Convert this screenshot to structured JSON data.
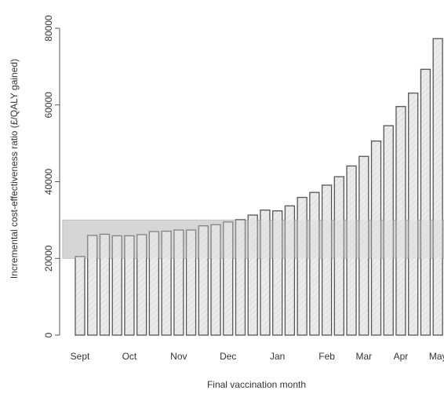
{
  "chart_data": {
    "type": "bar",
    "title": "",
    "xlabel": "Final vaccination month",
    "ylabel": "Incremental cost-effectiveness ratio (£/QALY gained)",
    "ylim": [
      0,
      80000
    ],
    "yticks": [
      "0",
      "20000",
      "40000",
      "60000",
      "80000"
    ],
    "month_labels": [
      "Sept",
      "Oct",
      "Nov",
      "Dec",
      "Jan",
      "Feb",
      "Mar",
      "Apr",
      "May"
    ],
    "threshold_band": [
      20000,
      30000
    ],
    "grid": false,
    "values": [
      20500,
      26000,
      26300,
      25900,
      25900,
      26200,
      27000,
      27100,
      27400,
      27400,
      28500,
      28800,
      29500,
      30100,
      31300,
      32600,
      32400,
      33700,
      35900,
      37200,
      39100,
      41300,
      44100,
      46600,
      50600,
      54600,
      59600,
      63100,
      69300,
      77300
    ],
    "colors": {
      "bar_fill": "#ebebeb",
      "bar_stroke": "#555555",
      "band_fill": "#d6d6d6",
      "axis": "#555555",
      "text": "#333333"
    }
  }
}
